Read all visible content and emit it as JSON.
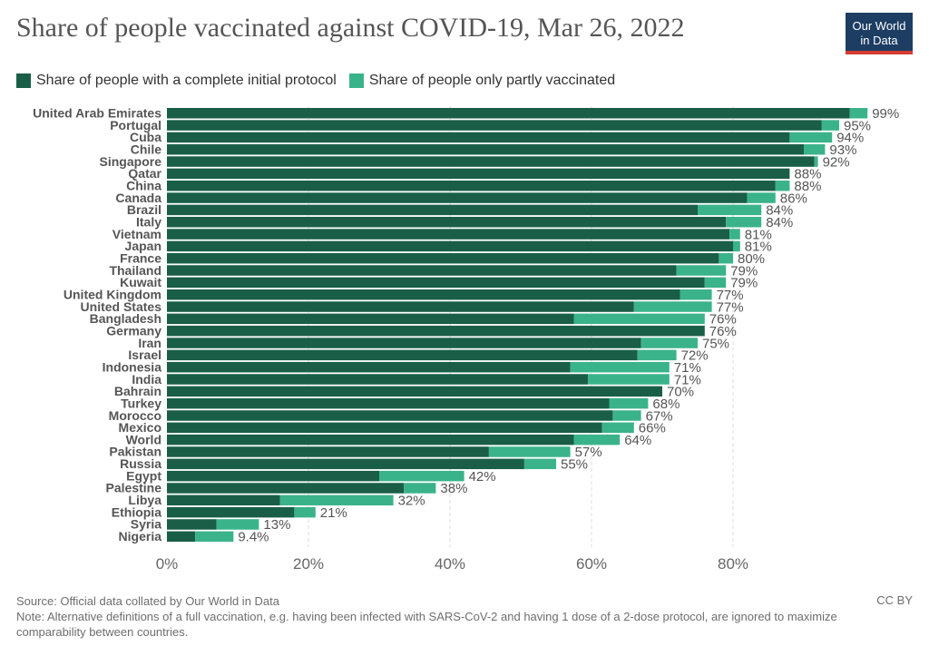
{
  "title": "Share of people vaccinated against COVID-19, Mar 26, 2022",
  "logo": {
    "line1": "Our World",
    "line2": "in Data"
  },
  "source": "Source: Official data collated by Our World in Data",
  "note": "Note: Alternative definitions of a full vaccination, e.g. having been infected with SARS-CoV-2 and having 1 dose of a 2-dose protocol, are ignored to maximize comparability between countries.",
  "license": "CC BY",
  "chart_data": {
    "type": "bar",
    "orientation": "horizontal",
    "stacked": true,
    "title": "Share of people vaccinated against COVID-19, Mar 26, 2022",
    "xlim": [
      0,
      100
    ],
    "x_ticks": [
      "0%",
      "20%",
      "40%",
      "60%",
      "80%"
    ],
    "grid": true,
    "legend_position": "top-left",
    "colors": {
      "complete": "#1a5e48",
      "partial": "#3bb38a"
    },
    "categories": [
      "United Arab Emirates",
      "Portugal",
      "Cuba",
      "Chile",
      "Singapore",
      "Qatar",
      "China",
      "Canada",
      "Brazil",
      "Italy",
      "Vietnam",
      "Japan",
      "France",
      "Thailand",
      "Kuwait",
      "United Kingdom",
      "United States",
      "Bangladesh",
      "Germany",
      "Iran",
      "Israel",
      "Indonesia",
      "India",
      "Bahrain",
      "Turkey",
      "Morocco",
      "Mexico",
      "World",
      "Pakistan",
      "Russia",
      "Egypt",
      "Palestine",
      "Libya",
      "Ethiopia",
      "Syria",
      "Nigeria"
    ],
    "series": [
      {
        "name": "Share of people with a complete initial protocol",
        "values": [
          96.5,
          92.5,
          88,
          90,
          91.5,
          88,
          86,
          82,
          75,
          79,
          79.5,
          80,
          78,
          72,
          76,
          72.5,
          66,
          57.5,
          76,
          67,
          66.5,
          57,
          59.5,
          70,
          62.5,
          63,
          61.5,
          57.5,
          45.5,
          50.5,
          30,
          33.5,
          16,
          18,
          7,
          4
        ]
      },
      {
        "name": "Share of people only partly vaccinated",
        "values": [
          2.5,
          2.5,
          6,
          3,
          0.5,
          0,
          2,
          4,
          9,
          5,
          1.5,
          1,
          2,
          7,
          3,
          4.5,
          11,
          18.5,
          0,
          8,
          5.5,
          14,
          11.5,
          0,
          5.5,
          4,
          4.5,
          6.5,
          11.5,
          4.5,
          12,
          4.5,
          16,
          3,
          6,
          5.4
        ]
      }
    ],
    "data_labels": [
      "99%",
      "95%",
      "94%",
      "93%",
      "92%",
      "88%",
      "88%",
      "86%",
      "84%",
      "84%",
      "81%",
      "81%",
      "80%",
      "79%",
      "79%",
      "77%",
      "77%",
      "76%",
      "76%",
      "75%",
      "72%",
      "71%",
      "71%",
      "70%",
      "68%",
      "67%",
      "66%",
      "64%",
      "57%",
      "55%",
      "42%",
      "38%",
      "32%",
      "21%",
      "13%",
      "9.4%"
    ]
  }
}
